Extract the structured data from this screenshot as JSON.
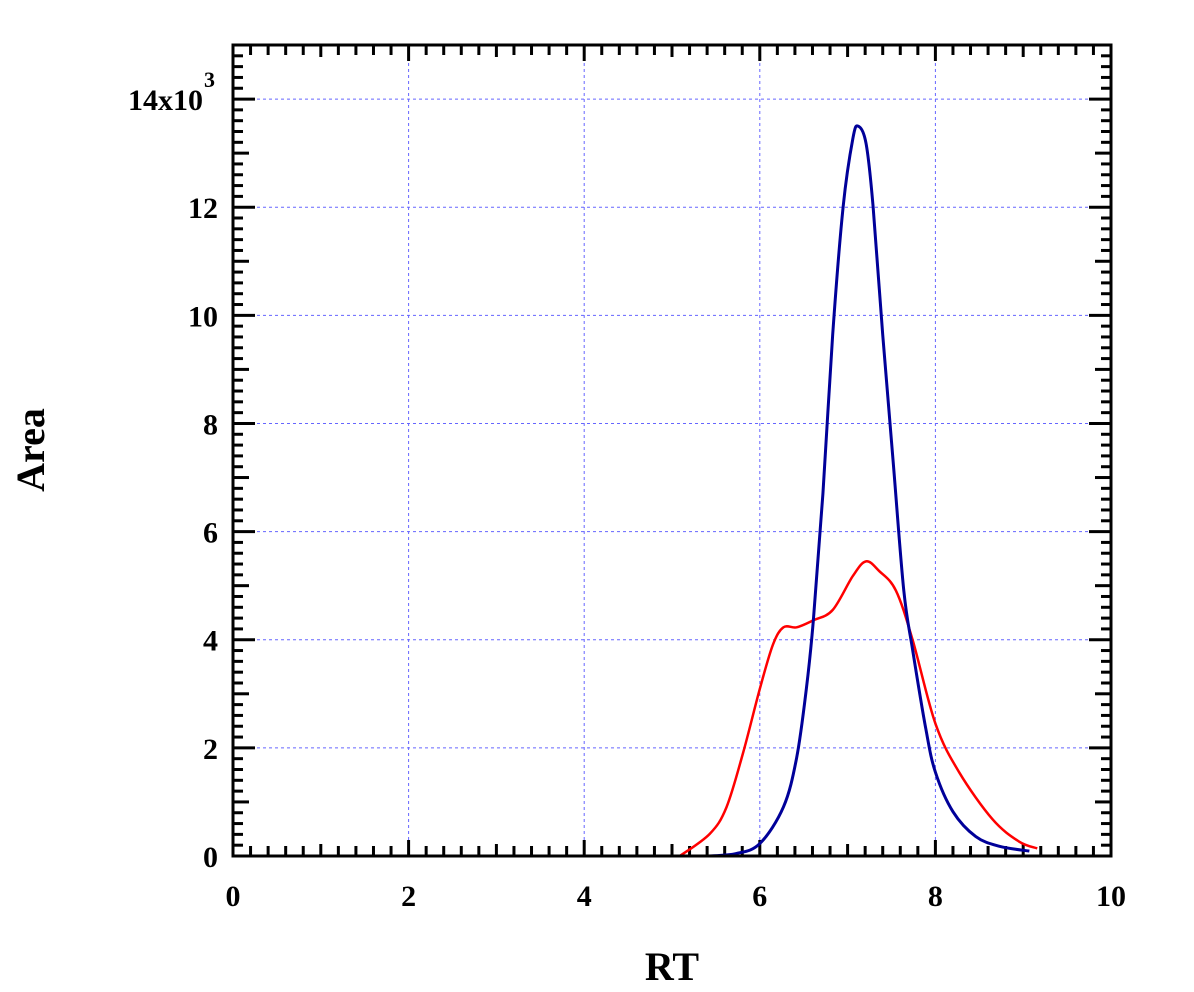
{
  "chart_data": {
    "type": "line",
    "title": "",
    "xlabel": "RT",
    "ylabel": "Area",
    "xlim": [
      0,
      10
    ],
    "ylim": [
      0,
      15000
    ],
    "grid": true,
    "x_ticks": [
      0,
      2,
      4,
      6,
      8,
      10
    ],
    "x_tick_labels": [
      "0",
      "2",
      "4",
      "6",
      "8",
      "10"
    ],
    "y_ticks": [
      0,
      2000,
      4000,
      6000,
      8000,
      10000,
      12000,
      14000
    ],
    "y_tick_labels": [
      "0",
      "2",
      "4",
      "6",
      "8",
      "10",
      "12",
      "14x10"
    ],
    "y_multiplier_exponent": "3",
    "x_minor_step": 0.2,
    "y_minor_step": 200,
    "series": [
      {
        "name": "red",
        "color": "#ff0000",
        "x": [
          5.09,
          5.43,
          5.62,
          5.81,
          6.0,
          6.15,
          6.27,
          6.42,
          6.61,
          6.83,
          7.06,
          7.21,
          7.36,
          7.55,
          7.74,
          8.0,
          8.27,
          8.65,
          8.95,
          9.16
        ],
        "y": [
          0,
          410,
          900,
          1910,
          3090,
          3910,
          4230,
          4230,
          4360,
          4550,
          5180,
          5450,
          5270,
          4910,
          4000,
          2450,
          1550,
          680,
          270,
          140
        ]
      },
      {
        "name": "blue",
        "color": "#000099",
        "x": [
          5.41,
          5.73,
          6.0,
          6.27,
          6.42,
          6.53,
          6.61,
          6.72,
          6.83,
          6.95,
          7.06,
          7.12,
          7.21,
          7.29,
          7.4,
          7.52,
          7.64,
          7.74,
          7.89,
          8.0,
          8.2,
          8.46,
          8.73,
          9.07
        ],
        "y": [
          0,
          45,
          230,
          910,
          1820,
          3090,
          4360,
          6730,
          9640,
          12020,
          13270,
          13500,
          13180,
          12020,
          9640,
          7270,
          4910,
          3820,
          2360,
          1550,
          820,
          360,
          180,
          90
        ]
      }
    ]
  }
}
